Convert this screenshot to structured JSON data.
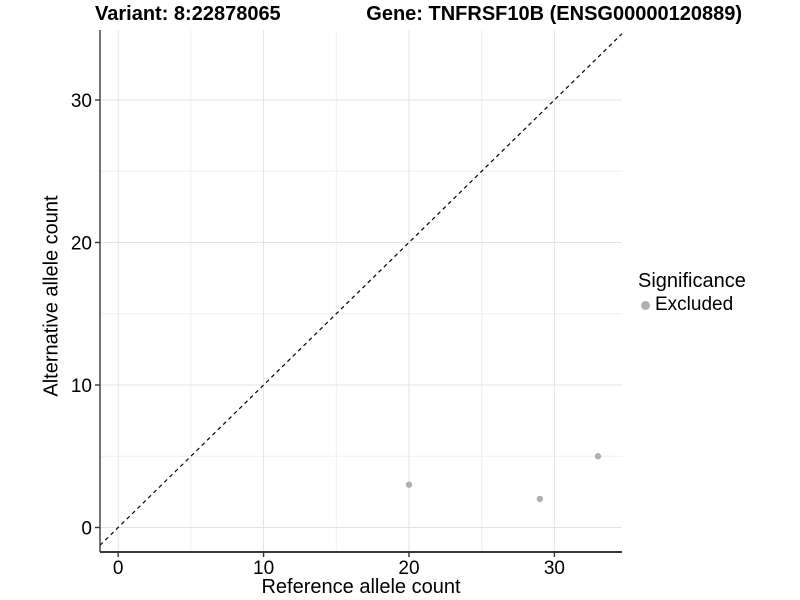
{
  "chart_data": {
    "type": "scatter",
    "title_left": "Variant: 8:22878065",
    "title_right": "Gene: TNFRSF10B (ENSG00000120889)",
    "xlabel": "Reference allele count",
    "ylabel": "Alternative allele count",
    "xlim": [
      -1.25,
      34.65
    ],
    "ylim": [
      -1.72,
      34.91
    ],
    "xticks": [
      0,
      10,
      20,
      30
    ],
    "yticks": [
      0,
      10,
      20,
      30
    ],
    "xticks_minor": [
      5,
      15,
      25,
      35
    ],
    "yticks_minor": [
      5,
      15,
      25,
      35
    ],
    "grid": "major+minor",
    "identity_line": {
      "style": "dashed",
      "slope": 1,
      "intercept": 0,
      "color": "#000000"
    },
    "series": [
      {
        "name": "Excluded",
        "color": "#b0b0b0",
        "points": [
          [
            20,
            3
          ],
          [
            29,
            2
          ],
          [
            33,
            5
          ]
        ]
      }
    ],
    "legend": {
      "title": "Significance",
      "position": "right",
      "items": [
        {
          "label": "Excluded",
          "color": "#b0b0b0"
        }
      ]
    },
    "colors": {
      "grid_major": "#e3e3e3",
      "grid_minor": "#f0f0f0",
      "axis_line": "#3a3a3a",
      "tick": "#333333",
      "text": "#000000"
    }
  }
}
